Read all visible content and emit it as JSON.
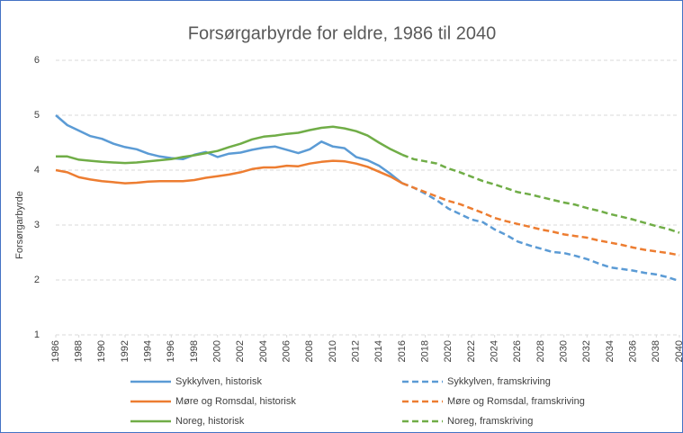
{
  "chart_data": {
    "type": "line",
    "title": "Forsørgarbyrde for eldre, 1986 til 2040",
    "y_label": "Forsørgarbyrde",
    "x": [
      1986,
      1987,
      1988,
      1989,
      1990,
      1991,
      1992,
      1993,
      1994,
      1995,
      1996,
      1997,
      1998,
      1999,
      2000,
      2001,
      2002,
      2003,
      2004,
      2005,
      2006,
      2007,
      2008,
      2009,
      2010,
      2011,
      2012,
      2013,
      2014,
      2015,
      2016,
      2017,
      2018,
      2019,
      2020,
      2021,
      2022,
      2023,
      2024,
      2025,
      2026,
      2027,
      2028,
      2029,
      2030,
      2031,
      2032,
      2033,
      2034,
      2035,
      2036,
      2037,
      2038,
      2039,
      2040
    ],
    "xlim": [
      1986,
      2040
    ],
    "xticks": [
      1986,
      1988,
      1990,
      1992,
      1994,
      1996,
      1998,
      2000,
      2002,
      2004,
      2006,
      2008,
      2010,
      2012,
      2014,
      2016,
      2018,
      2020,
      2022,
      2024,
      2026,
      2028,
      2030,
      2032,
      2034,
      2036,
      2038,
      2040
    ],
    "ylim": [
      1,
      6
    ],
    "yticks": [
      1,
      2,
      3,
      4,
      5,
      6
    ],
    "grid": true,
    "series": [
      {
        "name": "Sykkylven, historisk",
        "color": "#5b9bd5",
        "dashed": false,
        "values": [
          5.0,
          4.82,
          4.72,
          4.62,
          4.57,
          4.48,
          4.42,
          4.38,
          4.3,
          4.25,
          4.22,
          4.2,
          4.28,
          4.33,
          4.24,
          4.3,
          4.32,
          4.37,
          4.41,
          4.43,
          4.37,
          4.31,
          4.38,
          4.52,
          4.43,
          4.4,
          4.24,
          4.18,
          4.08,
          3.93,
          3.76,
          null,
          null,
          null,
          null,
          null,
          null,
          null,
          null,
          null,
          null,
          null,
          null,
          null,
          null,
          null,
          null,
          null,
          null,
          null,
          null,
          null,
          null,
          null,
          null
        ]
      },
      {
        "name": "Møre og Romsdal, historisk",
        "color": "#ed7d31",
        "dashed": false,
        "values": [
          4.0,
          3.96,
          3.87,
          3.83,
          3.8,
          3.78,
          3.76,
          3.77,
          3.79,
          3.8,
          3.8,
          3.8,
          3.82,
          3.86,
          3.89,
          3.92,
          3.96,
          4.02,
          4.05,
          4.05,
          4.08,
          4.07,
          4.12,
          4.15,
          4.17,
          4.16,
          4.12,
          4.06,
          3.97,
          3.88,
          3.76,
          null,
          null,
          null,
          null,
          null,
          null,
          null,
          null,
          null,
          null,
          null,
          null,
          null,
          null,
          null,
          null,
          null,
          null,
          null,
          null,
          null,
          null,
          null,
          null
        ]
      },
      {
        "name": "Noreg, historisk",
        "color": "#70ad47",
        "dashed": false,
        "values": [
          4.25,
          4.25,
          4.19,
          4.17,
          4.15,
          4.14,
          4.13,
          4.14,
          4.16,
          4.18,
          4.2,
          4.24,
          4.27,
          4.31,
          4.35,
          4.42,
          4.48,
          4.56,
          4.61,
          4.63,
          4.66,
          4.68,
          4.73,
          4.77,
          4.79,
          4.76,
          4.71,
          4.63,
          4.5,
          4.38,
          4.28,
          null,
          null,
          null,
          null,
          null,
          null,
          null,
          null,
          null,
          null,
          null,
          null,
          null,
          null,
          null,
          null,
          null,
          null,
          null,
          null,
          null,
          null,
          null,
          null
        ]
      },
      {
        "name": "Sykkylven, framskriving",
        "color": "#5b9bd5",
        "dashed": true,
        "values": [
          null,
          null,
          null,
          null,
          null,
          null,
          null,
          null,
          null,
          null,
          null,
          null,
          null,
          null,
          null,
          null,
          null,
          null,
          null,
          null,
          null,
          null,
          null,
          null,
          null,
          null,
          null,
          null,
          null,
          null,
          3.76,
          3.68,
          3.57,
          3.45,
          3.3,
          3.2,
          3.1,
          3.05,
          2.92,
          2.82,
          2.7,
          2.63,
          2.57,
          2.51,
          2.49,
          2.44,
          2.38,
          2.3,
          2.23,
          2.2,
          2.17,
          2.13,
          2.1,
          2.05,
          1.98
        ]
      },
      {
        "name": "Møre og Romsdal, framskriving",
        "color": "#ed7d31",
        "dashed": true,
        "values": [
          null,
          null,
          null,
          null,
          null,
          null,
          null,
          null,
          null,
          null,
          null,
          null,
          null,
          null,
          null,
          null,
          null,
          null,
          null,
          null,
          null,
          null,
          null,
          null,
          null,
          null,
          null,
          null,
          null,
          null,
          3.76,
          3.68,
          3.6,
          3.52,
          3.44,
          3.38,
          3.3,
          3.22,
          3.13,
          3.07,
          3.02,
          2.97,
          2.92,
          2.88,
          2.83,
          2.8,
          2.77,
          2.72,
          2.68,
          2.64,
          2.59,
          2.55,
          2.52,
          2.49,
          2.45
        ]
      },
      {
        "name": "Noreg, framskriving",
        "color": "#70ad47",
        "dashed": true,
        "values": [
          null,
          null,
          null,
          null,
          null,
          null,
          null,
          null,
          null,
          null,
          null,
          null,
          null,
          null,
          null,
          null,
          null,
          null,
          null,
          null,
          null,
          null,
          null,
          null,
          null,
          null,
          null,
          null,
          null,
          null,
          4.28,
          4.2,
          4.16,
          4.12,
          4.03,
          3.96,
          3.88,
          3.8,
          3.74,
          3.67,
          3.6,
          3.56,
          3.51,
          3.46,
          3.41,
          3.37,
          3.31,
          3.26,
          3.2,
          3.15,
          3.1,
          3.04,
          2.98,
          2.93,
          2.86
        ]
      }
    ]
  }
}
